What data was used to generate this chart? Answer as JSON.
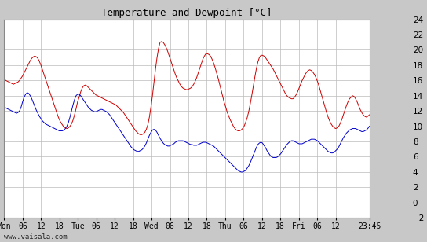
{
  "title": "Temperature and Dewpoint [°C]",
  "ylim": [
    -2,
    24
  ],
  "yticks": [
    -2,
    0,
    2,
    4,
    6,
    8,
    10,
    12,
    14,
    16,
    18,
    20,
    22,
    24
  ],
  "x_tick_labels": [
    "Mon",
    "06",
    "12",
    "18",
    "Tue",
    "06",
    "12",
    "18",
    "Wed",
    "06",
    "12",
    "18",
    "Thu",
    "06",
    "12",
    "18",
    "Fri",
    "06",
    "12",
    "23:45"
  ],
  "x_tick_positions": [
    0,
    6,
    12,
    18,
    24,
    30,
    36,
    42,
    48,
    54,
    60,
    66,
    72,
    78,
    84,
    90,
    96,
    102,
    108,
    119
  ],
  "x_total_hours": 119,
  "watermark": "www.vaisala.com",
  "temp_color": "#cc0000",
  "dewp_color": "#0000cc",
  "bg_color": "#ffffff",
  "fig_bg_color": "#c8c8c8",
  "grid_color": "#bbbbbb",
  "temp_data": [
    16.2,
    16.0,
    15.9,
    15.8,
    15.7,
    15.6,
    15.5,
    15.6,
    15.7,
    15.8,
    16.0,
    16.3,
    16.6,
    17.0,
    17.4,
    17.8,
    18.2,
    18.6,
    18.9,
    19.1,
    19.2,
    19.1,
    18.9,
    18.5,
    18.0,
    17.4,
    16.8,
    16.2,
    15.6,
    15.0,
    14.4,
    13.8,
    13.2,
    12.6,
    12.0,
    11.4,
    10.9,
    10.5,
    10.2,
    9.9,
    9.8,
    9.7,
    9.8,
    10.0,
    10.3,
    10.8,
    11.5,
    12.3,
    13.2,
    13.8,
    14.5,
    15.0,
    15.3,
    15.4,
    15.3,
    15.1,
    14.9,
    14.7,
    14.5,
    14.3,
    14.1,
    14.0,
    13.9,
    13.8,
    13.7,
    13.6,
    13.5,
    13.4,
    13.3,
    13.2,
    13.1,
    13.0,
    12.9,
    12.8,
    12.6,
    12.4,
    12.2,
    12.0,
    11.8,
    11.5,
    11.2,
    10.9,
    10.6,
    10.3,
    10.0,
    9.7,
    9.4,
    9.2,
    9.0,
    8.9,
    8.9,
    9.0,
    9.2,
    9.6,
    10.2,
    11.2,
    12.5,
    14.0,
    15.8,
    17.5,
    19.0,
    20.2,
    21.0,
    21.1,
    21.0,
    20.7,
    20.3,
    19.8,
    19.2,
    18.6,
    18.0,
    17.4,
    16.8,
    16.3,
    15.9,
    15.5,
    15.2,
    15.0,
    14.9,
    14.8,
    14.8,
    14.9,
    15.0,
    15.2,
    15.5,
    15.9,
    16.4,
    17.0,
    17.6,
    18.2,
    18.8,
    19.2,
    19.5,
    19.5,
    19.4,
    19.2,
    18.8,
    18.3,
    17.7,
    17.0,
    16.3,
    15.5,
    14.7,
    13.9,
    13.1,
    12.5,
    11.8,
    11.3,
    10.8,
    10.4,
    10.0,
    9.7,
    9.5,
    9.4,
    9.4,
    9.5,
    9.7,
    10.0,
    10.5,
    11.1,
    11.9,
    12.9,
    14.0,
    15.2,
    16.4,
    17.5,
    18.4,
    19.0,
    19.3,
    19.3,
    19.2,
    19.0,
    18.7,
    18.4,
    18.1,
    17.8,
    17.5,
    17.1,
    16.7,
    16.3,
    15.9,
    15.5,
    15.1,
    14.7,
    14.3,
    14.0,
    13.8,
    13.7,
    13.6,
    13.6,
    13.8,
    14.1,
    14.5,
    15.0,
    15.5,
    16.0,
    16.4,
    16.8,
    17.1,
    17.3,
    17.4,
    17.3,
    17.1,
    16.8,
    16.4,
    15.9,
    15.3,
    14.6,
    13.9,
    13.2,
    12.5,
    11.8,
    11.2,
    10.7,
    10.3,
    10.0,
    9.8,
    9.7,
    9.8,
    10.0,
    10.4,
    10.9,
    11.5,
    12.1,
    12.7,
    13.2,
    13.6,
    13.8,
    14.0,
    13.9,
    13.6,
    13.2,
    12.7,
    12.2,
    11.8,
    11.5,
    11.3,
    11.2,
    11.3,
    11.5
  ],
  "dewp_data": [
    12.5,
    12.4,
    12.3,
    12.2,
    12.1,
    12.0,
    11.9,
    11.8,
    11.7,
    11.8,
    12.0,
    12.5,
    13.2,
    13.8,
    14.2,
    14.4,
    14.3,
    14.0,
    13.6,
    13.1,
    12.6,
    12.1,
    11.7,
    11.3,
    11.0,
    10.7,
    10.5,
    10.3,
    10.2,
    10.1,
    10.0,
    9.9,
    9.8,
    9.7,
    9.6,
    9.5,
    9.4,
    9.4,
    9.4,
    9.5,
    9.7,
    10.0,
    10.5,
    11.2,
    12.0,
    12.8,
    13.5,
    14.0,
    14.2,
    14.2,
    14.0,
    13.7,
    13.4,
    13.1,
    12.8,
    12.5,
    12.3,
    12.1,
    12.0,
    11.9,
    11.9,
    12.0,
    12.1,
    12.2,
    12.2,
    12.1,
    12.0,
    11.9,
    11.7,
    11.5,
    11.2,
    10.9,
    10.6,
    10.3,
    10.0,
    9.7,
    9.4,
    9.1,
    8.8,
    8.5,
    8.2,
    7.9,
    7.6,
    7.3,
    7.1,
    6.9,
    6.8,
    6.7,
    6.7,
    6.8,
    6.9,
    7.1,
    7.4,
    7.8,
    8.3,
    8.8,
    9.2,
    9.5,
    9.6,
    9.5,
    9.2,
    8.8,
    8.4,
    8.1,
    7.8,
    7.6,
    7.5,
    7.4,
    7.4,
    7.5,
    7.6,
    7.7,
    7.9,
    8.0,
    8.1,
    8.1,
    8.1,
    8.1,
    8.0,
    7.9,
    7.8,
    7.7,
    7.6,
    7.6,
    7.5,
    7.5,
    7.5,
    7.6,
    7.7,
    7.8,
    7.9,
    7.9,
    7.9,
    7.8,
    7.7,
    7.6,
    7.5,
    7.4,
    7.2,
    7.0,
    6.8,
    6.6,
    6.4,
    6.2,
    6.0,
    5.8,
    5.6,
    5.4,
    5.2,
    5.0,
    4.8,
    4.6,
    4.4,
    4.2,
    4.1,
    4.0,
    4.0,
    4.1,
    4.2,
    4.5,
    4.8,
    5.2,
    5.7,
    6.2,
    6.7,
    7.2,
    7.6,
    7.8,
    7.9,
    7.8,
    7.5,
    7.2,
    6.8,
    6.5,
    6.2,
    6.0,
    5.9,
    5.9,
    5.9,
    6.0,
    6.2,
    6.4,
    6.7,
    7.0,
    7.3,
    7.6,
    7.8,
    8.0,
    8.1,
    8.1,
    8.0,
    7.9,
    7.8,
    7.7,
    7.7,
    7.7,
    7.8,
    7.9,
    8.0,
    8.1,
    8.2,
    8.3,
    8.3,
    8.3,
    8.2,
    8.1,
    7.9,
    7.7,
    7.5,
    7.3,
    7.1,
    6.9,
    6.7,
    6.6,
    6.5,
    6.5,
    6.6,
    6.8,
    7.0,
    7.3,
    7.7,
    8.1,
    8.5,
    8.8,
    9.1,
    9.3,
    9.5,
    9.6,
    9.7,
    9.7,
    9.7,
    9.6,
    9.5,
    9.4,
    9.3,
    9.3,
    9.4,
    9.5,
    9.7,
    10.0
  ]
}
